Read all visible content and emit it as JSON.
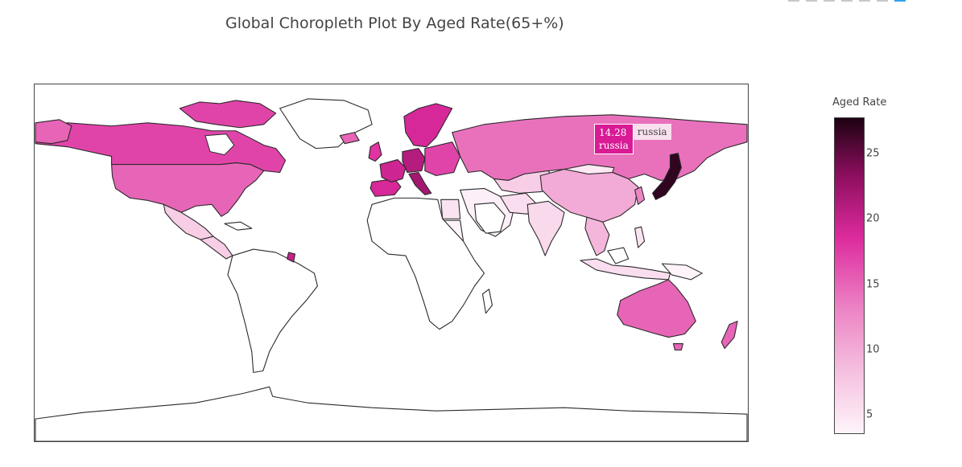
{
  "title": "Global Choropleth Plot By Aged Rate(65+%)",
  "colorbar": {
    "title": "Aged Rate",
    "ticks": [
      {
        "label": "25",
        "value": 25
      },
      {
        "label": "20",
        "value": 20
      },
      {
        "label": "15",
        "value": 15
      },
      {
        "label": "10",
        "value": 10
      },
      {
        "label": "5",
        "value": 5
      }
    ],
    "min": 3.5,
    "max": 27.8,
    "scale": "RdPu"
  },
  "hover": {
    "value": "14.28",
    "country": "russia",
    "trace_name": "russia"
  },
  "chart_data": {
    "type": "choropleth",
    "metric": "Aged Rate",
    "regions": [
      {
        "name": "russia",
        "value": 14.28
      },
      {
        "name": "japan",
        "value": 27
      },
      {
        "name": "germany",
        "value": 21
      },
      {
        "name": "canada",
        "value": 17
      },
      {
        "name": "usa",
        "value": 15
      },
      {
        "name": "australia",
        "value": 15
      },
      {
        "name": "china",
        "value": 10
      },
      {
        "name": "mexico",
        "value": 7
      },
      {
        "name": "india",
        "value": 6
      },
      {
        "name": "egypt",
        "value": 5
      },
      {
        "name": "saudi arabia",
        "value": 3.5
      }
    ]
  },
  "colors": {
    "no_data": "#ffffff",
    "border": "#2a2a2a",
    "modebar_active": "#2fa3e8"
  }
}
